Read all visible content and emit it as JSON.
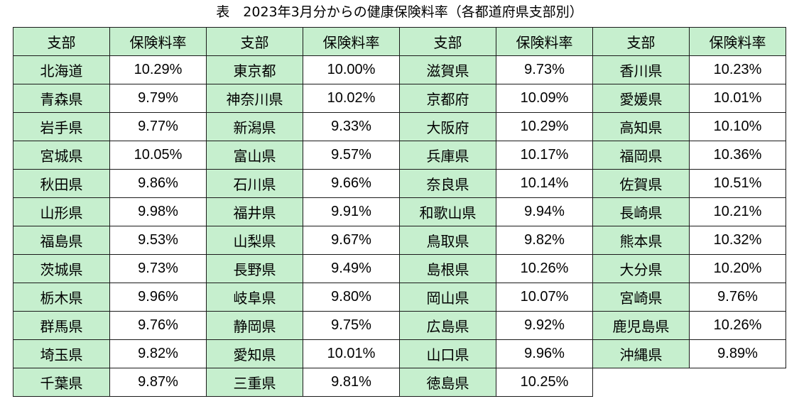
{
  "title": "表　2023年3月分からの健康保険料率（各都道府県支部別）",
  "header": {
    "branch_label": "支部",
    "rate_label": "保険料率"
  },
  "columns": [
    {
      "rows": [
        {
          "branch": "北海道",
          "rate": "10.29%"
        },
        {
          "branch": "青森県",
          "rate": "9.79%"
        },
        {
          "branch": "岩手県",
          "rate": "9.77%"
        },
        {
          "branch": "宮城県",
          "rate": "10.05%"
        },
        {
          "branch": "秋田県",
          "rate": "9.86%"
        },
        {
          "branch": "山形県",
          "rate": "9.98%"
        },
        {
          "branch": "福島県",
          "rate": "9.53%"
        },
        {
          "branch": "茨城県",
          "rate": "9.73%"
        },
        {
          "branch": "栃木県",
          "rate": "9.96%"
        },
        {
          "branch": "群馬県",
          "rate": "9.76%"
        },
        {
          "branch": "埼玉県",
          "rate": "9.82%"
        },
        {
          "branch": "千葉県",
          "rate": "9.87%"
        }
      ]
    },
    {
      "rows": [
        {
          "branch": "東京都",
          "rate": "10.00%"
        },
        {
          "branch": "神奈川県",
          "rate": "10.02%"
        },
        {
          "branch": "新潟県",
          "rate": "9.33%"
        },
        {
          "branch": "富山県",
          "rate": "9.57%"
        },
        {
          "branch": "石川県",
          "rate": "9.66%"
        },
        {
          "branch": "福井県",
          "rate": "9.91%"
        },
        {
          "branch": "山梨県",
          "rate": "9.67%"
        },
        {
          "branch": "長野県",
          "rate": "9.49%"
        },
        {
          "branch": "岐阜県",
          "rate": "9.80%"
        },
        {
          "branch": "静岡県",
          "rate": "9.75%"
        },
        {
          "branch": "愛知県",
          "rate": "10.01%"
        },
        {
          "branch": "三重県",
          "rate": "9.81%"
        }
      ]
    },
    {
      "rows": [
        {
          "branch": "滋賀県",
          "rate": "9.73%"
        },
        {
          "branch": "京都府",
          "rate": "10.09%"
        },
        {
          "branch": "大阪府",
          "rate": "10.29%"
        },
        {
          "branch": "兵庫県",
          "rate": "10.17%"
        },
        {
          "branch": "奈良県",
          "rate": "10.14%"
        },
        {
          "branch": "和歌山県",
          "rate": "9.94%"
        },
        {
          "branch": "鳥取県",
          "rate": "9.82%"
        },
        {
          "branch": "島根県",
          "rate": "10.26%"
        },
        {
          "branch": "岡山県",
          "rate": "10.07%"
        },
        {
          "branch": "広島県",
          "rate": "9.92%"
        },
        {
          "branch": "山口県",
          "rate": "9.96%"
        },
        {
          "branch": "徳島県",
          "rate": "10.25%"
        }
      ]
    },
    {
      "rows": [
        {
          "branch": "香川県",
          "rate": "10.23%"
        },
        {
          "branch": "愛媛県",
          "rate": "10.01%"
        },
        {
          "branch": "高知県",
          "rate": "10.10%"
        },
        {
          "branch": "福岡県",
          "rate": "10.36%"
        },
        {
          "branch": "佐賀県",
          "rate": "10.51%"
        },
        {
          "branch": "長崎県",
          "rate": "10.21%"
        },
        {
          "branch": "熊本県",
          "rate": "10.32%"
        },
        {
          "branch": "大分県",
          "rate": "10.20%"
        },
        {
          "branch": "宮崎県",
          "rate": "9.76%"
        },
        {
          "branch": "鹿児島県",
          "rate": "10.26%"
        },
        {
          "branch": "沖縄県",
          "rate": "9.89%"
        }
      ]
    }
  ],
  "colors": {
    "branch_cell_bg": "#c6efce",
    "rate_cell_bg": "#ffffff",
    "border": "#1a1a1a"
  }
}
